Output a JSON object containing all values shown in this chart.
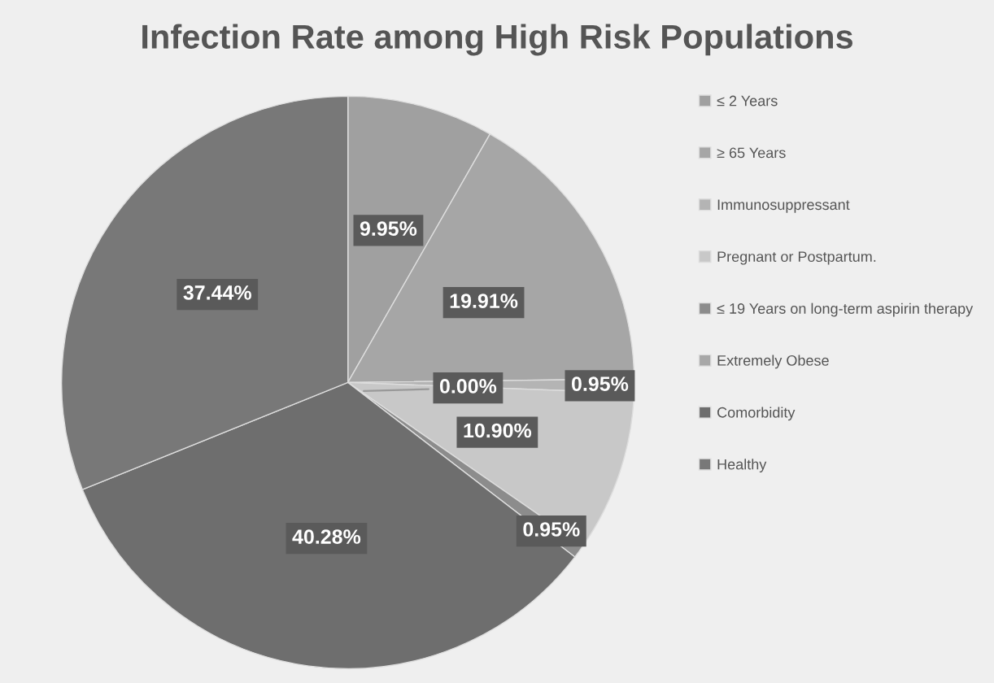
{
  "chart_data": {
    "type": "pie",
    "title": "Infection Rate among High Risk Populations",
    "categories": [
      "≤ 2 Years",
      "≥ 65 Years",
      "Immunosuppressant",
      "Pregnant or Postpartum.",
      "≤ 19 Years on long-term aspirin therapy",
      "Extremely Obese",
      "Comorbidity",
      "Healthy"
    ],
    "values": [
      9.95,
      19.91,
      0.95,
      10.9,
      0.95,
      0.0,
      40.28,
      37.44
    ],
    "colors": [
      "#a0a0a0",
      "#a6a6a6",
      "#b4b4b4",
      "#c8c8c8",
      "#8c8c8c",
      "#a8a8a8",
      "#6e6e6e",
      "#787878"
    ],
    "value_labels": [
      "9.95%",
      "19.91%",
      "0.95%",
      "10.90%",
      "0.95%",
      "0.00%",
      "40.28%",
      "37.44%"
    ],
    "legend": "right"
  }
}
